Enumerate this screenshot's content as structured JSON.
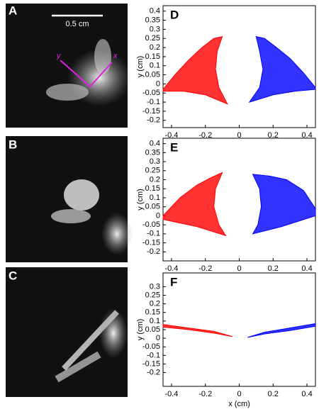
{
  "photos": [
    {
      "label": "A",
      "scale_bar": "0.5 cm",
      "axes": [
        "y",
        "x"
      ]
    },
    {
      "label": "B"
    },
    {
      "label": "C"
    }
  ],
  "chart_data": [
    {
      "type": "area",
      "title": "D",
      "ylabel": "y (cm)",
      "xlim": [
        -0.45,
        0.45
      ],
      "ylim": [
        -0.24,
        0.43
      ],
      "xticks": [
        -0.4,
        -0.2,
        0,
        0.2,
        0.4
      ],
      "yticks": [
        -0.2,
        -0.15,
        -0.1,
        -0.05,
        0,
        0.05,
        0.1,
        0.15,
        0.2,
        0.25,
        0.3,
        0.35,
        0.4
      ],
      "series": [
        {
          "color": "#ff0000",
          "x": [
            -0.45,
            -0.38,
            -0.3,
            -0.22,
            -0.15,
            -0.1,
            -0.13,
            -0.14,
            -0.12,
            -0.07,
            -0.2,
            -0.33,
            -0.45
          ],
          "values": [
            -0.03,
            0.05,
            0.13,
            0.2,
            0.25,
            0.26,
            0.18,
            0.08,
            -0.02,
            -0.11,
            -0.06,
            -0.04,
            -0.04
          ]
        },
        {
          "color": "#0000ff",
          "x": [
            0.45,
            0.38,
            0.3,
            0.22,
            0.15,
            0.1,
            0.12,
            0.14,
            0.12,
            0.06,
            0.2,
            0.33,
            0.45
          ],
          "values": [
            -0.02,
            0.06,
            0.14,
            0.2,
            0.25,
            0.26,
            0.18,
            0.08,
            -0.02,
            -0.1,
            -0.06,
            -0.04,
            -0.03
          ]
        }
      ]
    },
    {
      "type": "area",
      "title": "E",
      "ylabel": "y (cm)",
      "xlim": [
        -0.45,
        0.45
      ],
      "ylim": [
        -0.25,
        0.43
      ],
      "xticks": [
        -0.4,
        -0.2,
        0,
        0.2,
        0.4
      ],
      "yticks": [
        -0.2,
        -0.15,
        -0.1,
        -0.05,
        0,
        0.05,
        0.1,
        0.15,
        0.2,
        0.25,
        0.3,
        0.35,
        0.4
      ],
      "series": [
        {
          "color": "#ff0000",
          "x": [
            -0.45,
            -0.35,
            -0.25,
            -0.17,
            -0.1,
            -0.14,
            -0.15,
            -0.12,
            -0.08,
            -0.25,
            -0.45
          ],
          "values": [
            0.0,
            0.1,
            0.17,
            0.21,
            0.24,
            0.15,
            0.05,
            -0.05,
            -0.11,
            -0.06,
            -0.02
          ]
        },
        {
          "color": "#0000ff",
          "x": [
            0.45,
            0.38,
            0.28,
            0.18,
            0.08,
            0.12,
            0.13,
            0.11,
            0.08,
            0.25,
            0.45
          ],
          "values": [
            0.04,
            0.14,
            0.2,
            0.22,
            0.23,
            0.15,
            0.05,
            -0.05,
            -0.1,
            -0.06,
            0.0
          ]
        }
      ]
    },
    {
      "type": "area",
      "title": "F",
      "ylabel": "y (cm)",
      "xlabel": "x (cm)",
      "xlim": [
        -0.45,
        0.45
      ],
      "ylim": [
        -0.28,
        0.38
      ],
      "xticks": [
        -0.4,
        -0.2,
        0,
        0.2,
        0.4
      ],
      "yticks": [
        -0.2,
        -0.15,
        -0.1,
        -0.05,
        0,
        0.05,
        0.1,
        0.15,
        0.2,
        0.25,
        0.3
      ],
      "series": [
        {
          "color": "#ff0000",
          "x": [
            -0.45,
            -0.3,
            -0.15,
            -0.04,
            -0.15,
            -0.3,
            -0.45
          ],
          "values": [
            0.08,
            0.06,
            0.04,
            0.01,
            0.03,
            0.05,
            0.065
          ]
        },
        {
          "color": "#0000ff",
          "x": [
            0.45,
            0.3,
            0.15,
            0.05,
            0.15,
            0.3,
            0.45
          ],
          "values": [
            0.085,
            0.06,
            0.035,
            0.005,
            0.025,
            0.045,
            0.07
          ]
        }
      ]
    }
  ]
}
